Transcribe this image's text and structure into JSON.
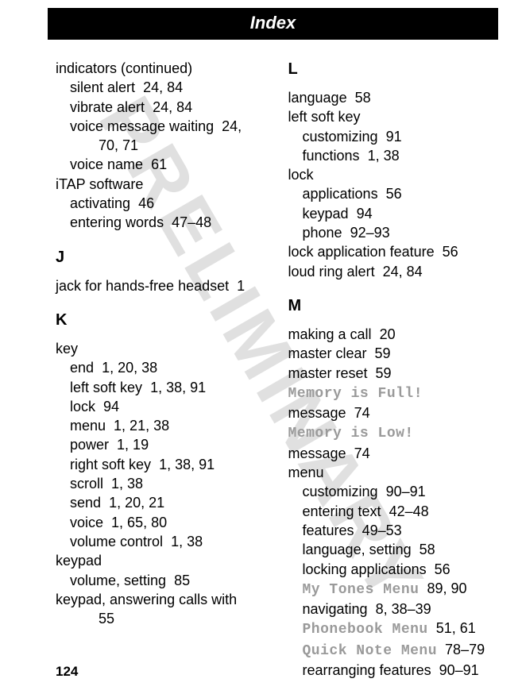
{
  "header": {
    "title": "Index"
  },
  "watermark": "PRELIMINARY",
  "pageNumber": "124",
  "left": {
    "cont": {
      "term": "indicators (continued)"
    },
    "silent": {
      "label": "silent alert",
      "pages": "24, 84"
    },
    "vibrate": {
      "label": "vibrate alert",
      "pages": "24, 84"
    },
    "vmw": {
      "label": "voice message waiting",
      "pages": "24,"
    },
    "vmw2": {
      "pages": "70, 71"
    },
    "vname": {
      "label": "voice name",
      "pages": "61"
    },
    "itap": {
      "label": "iTAP software"
    },
    "activ": {
      "label": "activating",
      "pages": "46"
    },
    "entw": {
      "label": "entering words",
      "pages": "47–48"
    },
    "J": "J",
    "jack": {
      "label": "jack for hands-free headset",
      "pages": "1"
    },
    "K": "K",
    "key": {
      "label": "key"
    },
    "end": {
      "label": "end",
      "pages": "1, 20, 38"
    },
    "lsk": {
      "label": "left soft key",
      "pages": "1, 38, 91"
    },
    "klock": {
      "label": "lock",
      "pages": "94"
    },
    "kmenu": {
      "label": "menu",
      "pages": "1, 21, 38"
    },
    "power": {
      "label": "power",
      "pages": "1, 19"
    },
    "rsk": {
      "label": "right soft key",
      "pages": "1, 38, 91"
    },
    "scroll": {
      "label": "scroll",
      "pages": "1, 38"
    },
    "send": {
      "label": "send",
      "pages": "1, 20, 21"
    },
    "voice": {
      "label": "voice",
      "pages": "1, 65, 80"
    },
    "vol": {
      "label": "volume control",
      "pages": "1, 38"
    },
    "keypad": {
      "label": "keypad"
    },
    "volset": {
      "label": "volume, setting",
      "pages": "85"
    },
    "keyans": {
      "label": "keypad, answering calls with"
    },
    "keyans2": {
      "pages": "55"
    }
  },
  "right": {
    "L": "L",
    "lang": {
      "label": "language",
      "pages": "58"
    },
    "lsk2": {
      "label": "left soft key"
    },
    "cust": {
      "label": "customizing",
      "pages": "91"
    },
    "func": {
      "label": "functions",
      "pages": "1, 38"
    },
    "lock": {
      "label": "lock"
    },
    "apps": {
      "label": "applications",
      "pages": "56"
    },
    "lkey": {
      "label": "keypad",
      "pages": "94"
    },
    "phone": {
      "label": "phone",
      "pages": "92–93"
    },
    "laf": {
      "label": "lock application feature",
      "pages": "56"
    },
    "loud": {
      "label": "loud ring alert",
      "pages": "24, 84"
    },
    "M": "M",
    "make": {
      "label": "making a call",
      "pages": "20"
    },
    "mclear": {
      "label": "master clear",
      "pages": "59"
    },
    "mreset": {
      "label": "master reset",
      "pages": "59"
    },
    "mfull": {
      "mono": "Memory is Full!",
      "label": " message",
      "pages": "74"
    },
    "mlow": {
      "mono": "Memory is Low!",
      "label": " message",
      "pages": "74"
    },
    "menu": {
      "label": "menu"
    },
    "mcust": {
      "label": "customizing",
      "pages": "90–91"
    },
    "metxt": {
      "label": "entering text",
      "pages": "42–48"
    },
    "mfeat": {
      "label": "features",
      "pages": "49–53"
    },
    "mlang": {
      "label": "language, setting",
      "pages": "58"
    },
    "mlockapp": {
      "label": "locking applications",
      "pages": "56"
    },
    "mytones": {
      "mono": "My Tones Menu",
      "pages": "89, 90"
    },
    "nav": {
      "label": "navigating",
      "pages": "8, 38–39"
    },
    "pbmenu": {
      "mono": "Phonebook Menu",
      "pages": "51, 61"
    },
    "qnmenu": {
      "mono": "Quick Note Menu",
      "pages": "78–79"
    },
    "rearr": {
      "label": "rearranging features",
      "pages": "90–91"
    }
  }
}
